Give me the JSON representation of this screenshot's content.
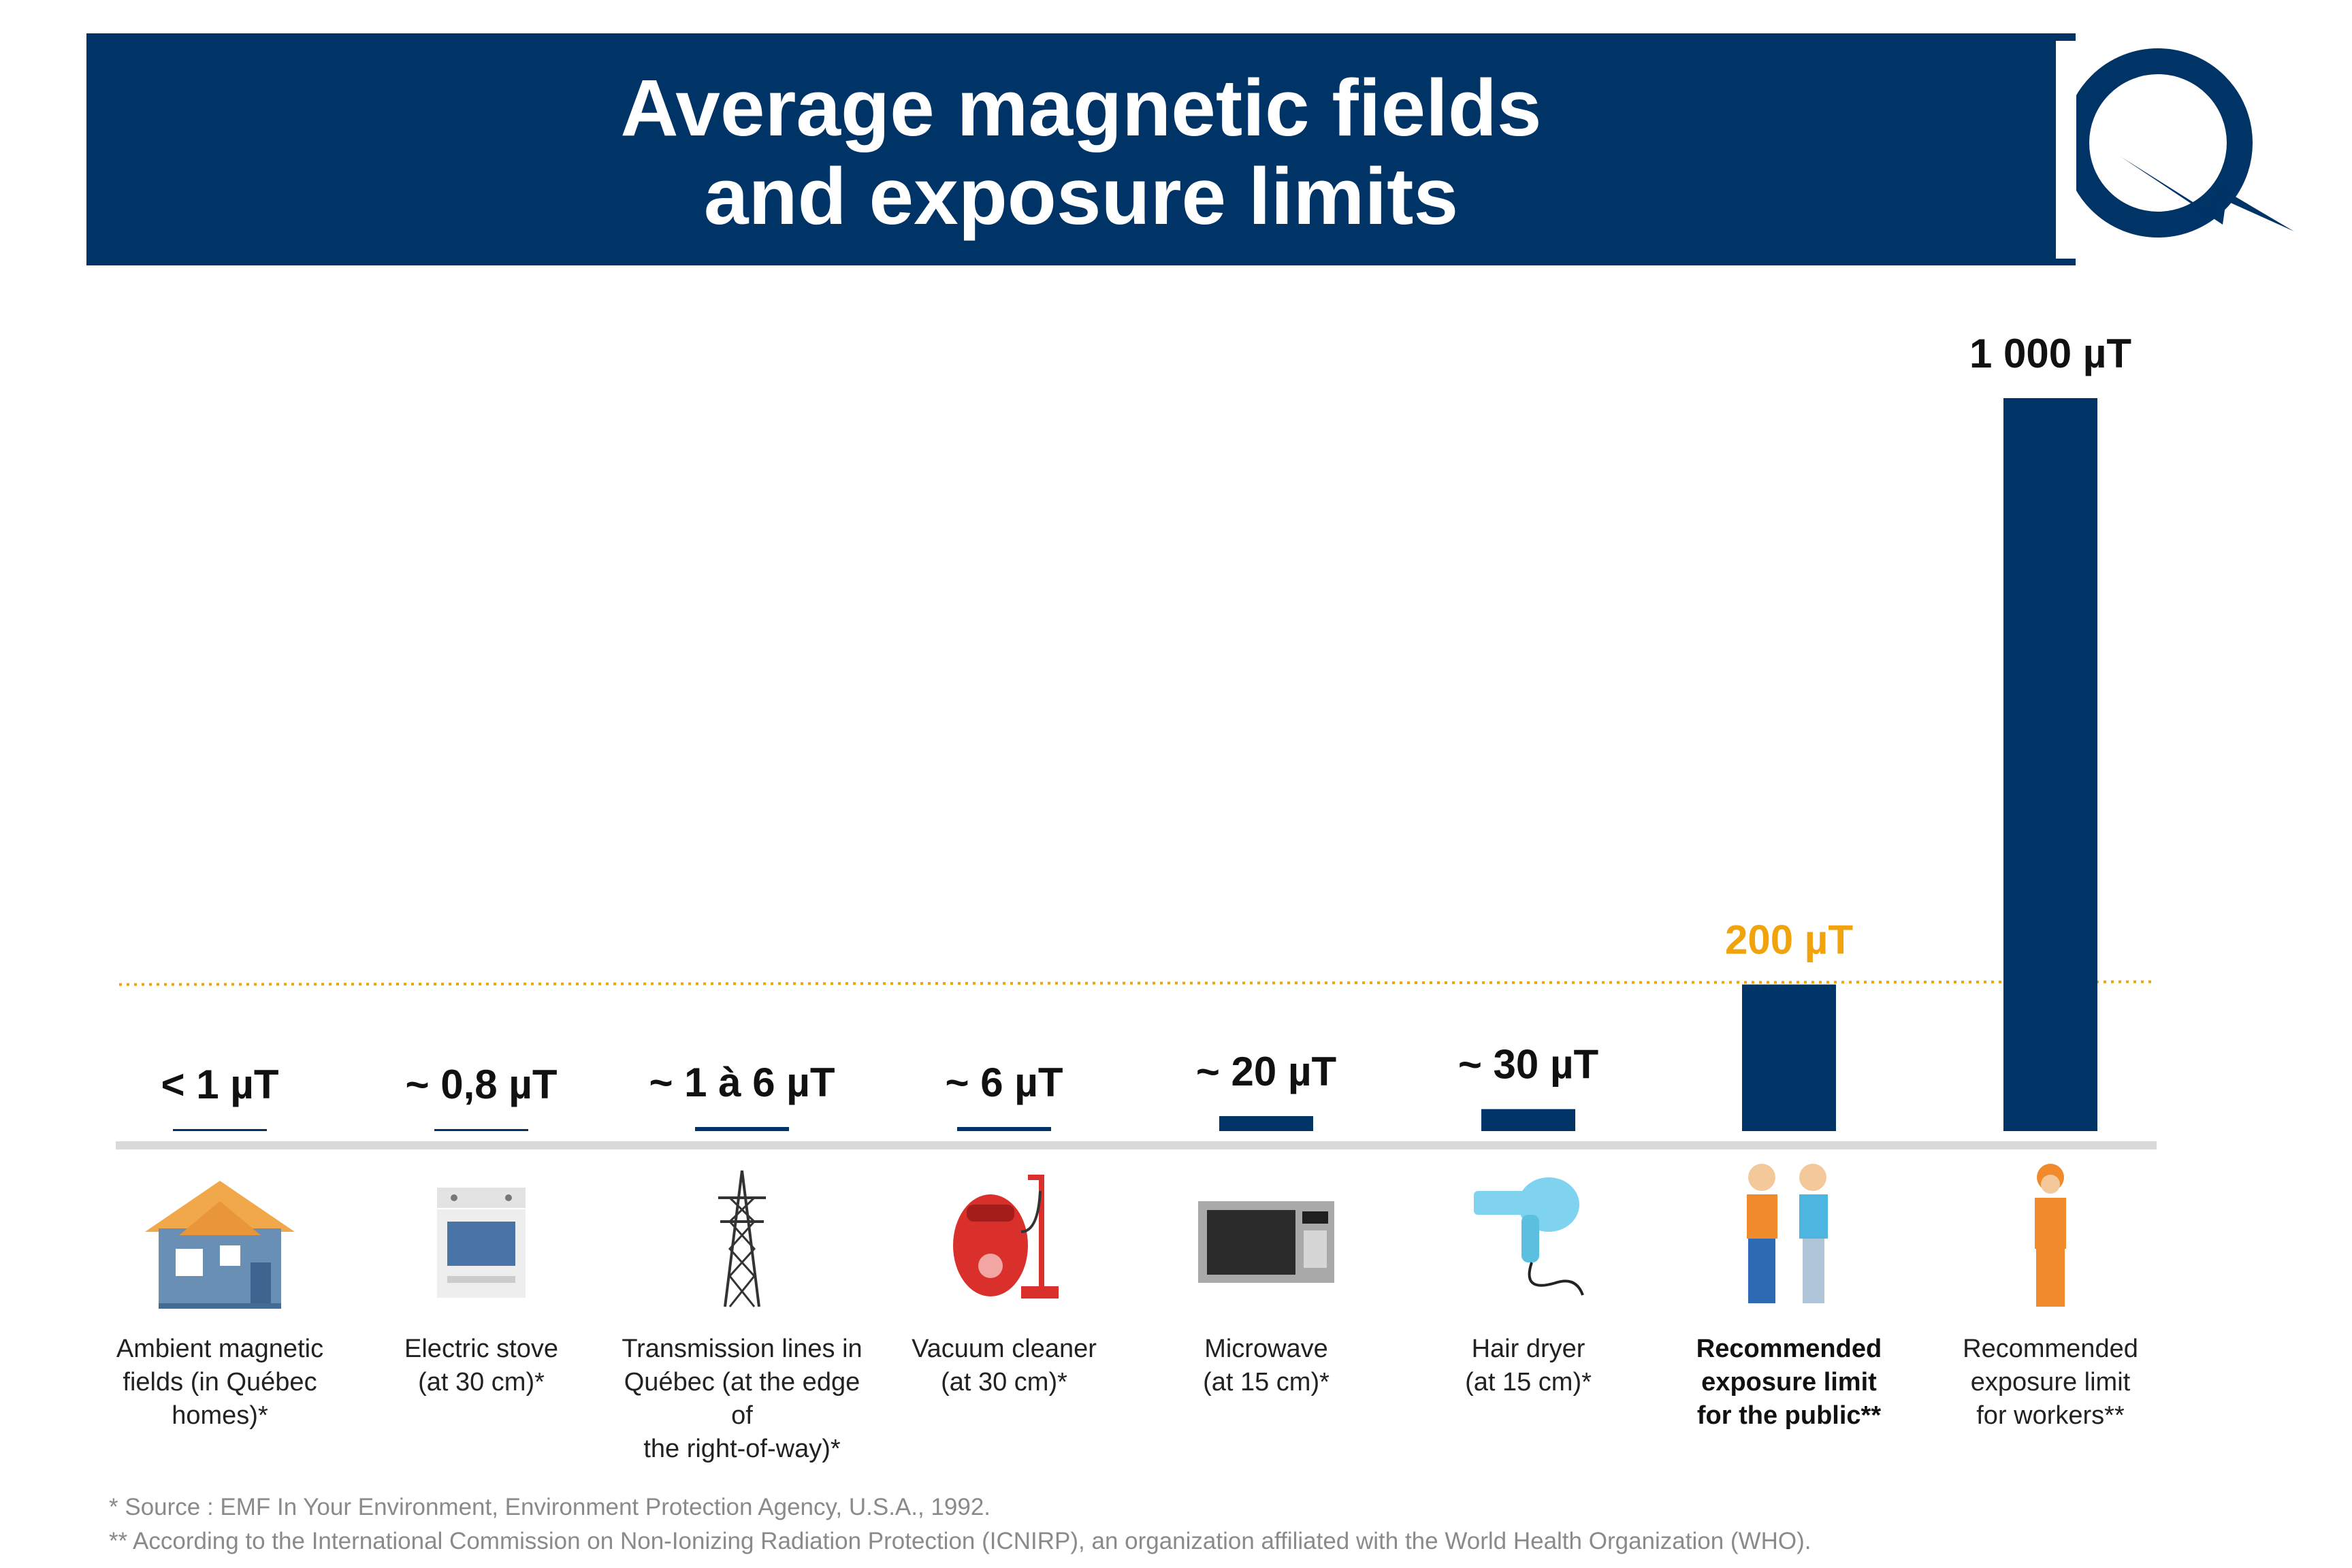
{
  "header": {
    "title_line1": "Average magnetic fields",
    "title_line2": "and exposure limits",
    "logo_icon": "hydro-quebec-q-logo",
    "background": "#003366"
  },
  "colors": {
    "bar": "#003366",
    "highlight": "#f0a30a",
    "baseline": "#d9d9d9"
  },
  "chart_data": {
    "type": "bar",
    "title": "Average magnetic fields and exposure limits",
    "unit": "µT",
    "grid": false,
    "categories": [
      "Ambient magnetic fields (in Québec homes)*",
      "Electric stove (at 30 cm)*",
      "Transmission lines in Québec (at the edge of the right-of-way)*",
      "Vacuum cleaner (at 30 cm)*",
      "Microwave (at 15 cm)*",
      "Hair dryer (at 15 cm)*",
      "Recommended exposure limit for the public**",
      "Recommended exposure limit for workers**"
    ],
    "values": [
      1,
      0.8,
      6,
      6,
      20,
      30,
      200,
      1000
    ],
    "value_labels": [
      "< 1 µT",
      "~ 0,8 µT",
      "~ 1 à 6 µT",
      "~ 6 µT",
      "~ 20 µT",
      "~  30 µT",
      "200 µT",
      "1 000 µT"
    ],
    "highlight_index": 6,
    "reference_line": {
      "value": 200,
      "style": "dotted",
      "color": "#f0a30a"
    },
    "ylim": [
      0,
      1000
    ]
  },
  "category_labels": [
    {
      "lines": [
        "Ambient magnetic",
        "fields (in Québec",
        "homes)*"
      ],
      "icon": "house-icon",
      "bold": false
    },
    {
      "lines": [
        "Electric stove",
        "(at 30 cm)*"
      ],
      "icon": "electric-stove-icon",
      "bold": false
    },
    {
      "lines": [
        "Transmission lines in",
        "Québec (at the edge of",
        "the right-of-way)*"
      ],
      "icon": "transmission-tower-icon",
      "bold": false
    },
    {
      "lines": [
        "Vacuum cleaner",
        "(at 30 cm)*"
      ],
      "icon": "vacuum-cleaner-icon",
      "bold": false
    },
    {
      "lines": [
        "Microwave",
        "(at 15 cm)*"
      ],
      "icon": "microwave-icon",
      "bold": false
    },
    {
      "lines": [
        "Hair dryer",
        "(at 15 cm)*"
      ],
      "icon": "hair-dryer-icon",
      "bold": false
    },
    {
      "lines": [
        "Recommended",
        "exposure limit",
        "for the public**"
      ],
      "icon": "public-people-icon",
      "bold": true
    },
    {
      "lines": [
        "Recommended",
        "exposure limit",
        "for workers**"
      ],
      "icon": "worker-icon",
      "bold": false
    }
  ],
  "footnotes": {
    "source": "* Source : EMF In Your Environment, Environment Protection Agency, U.S.A., 1992.",
    "icnirp": "** According to the International Commission on Non-Ionizing Radiation Protection (ICNIRP), an organization affiliated with the World Health Organization (WHO)."
  }
}
